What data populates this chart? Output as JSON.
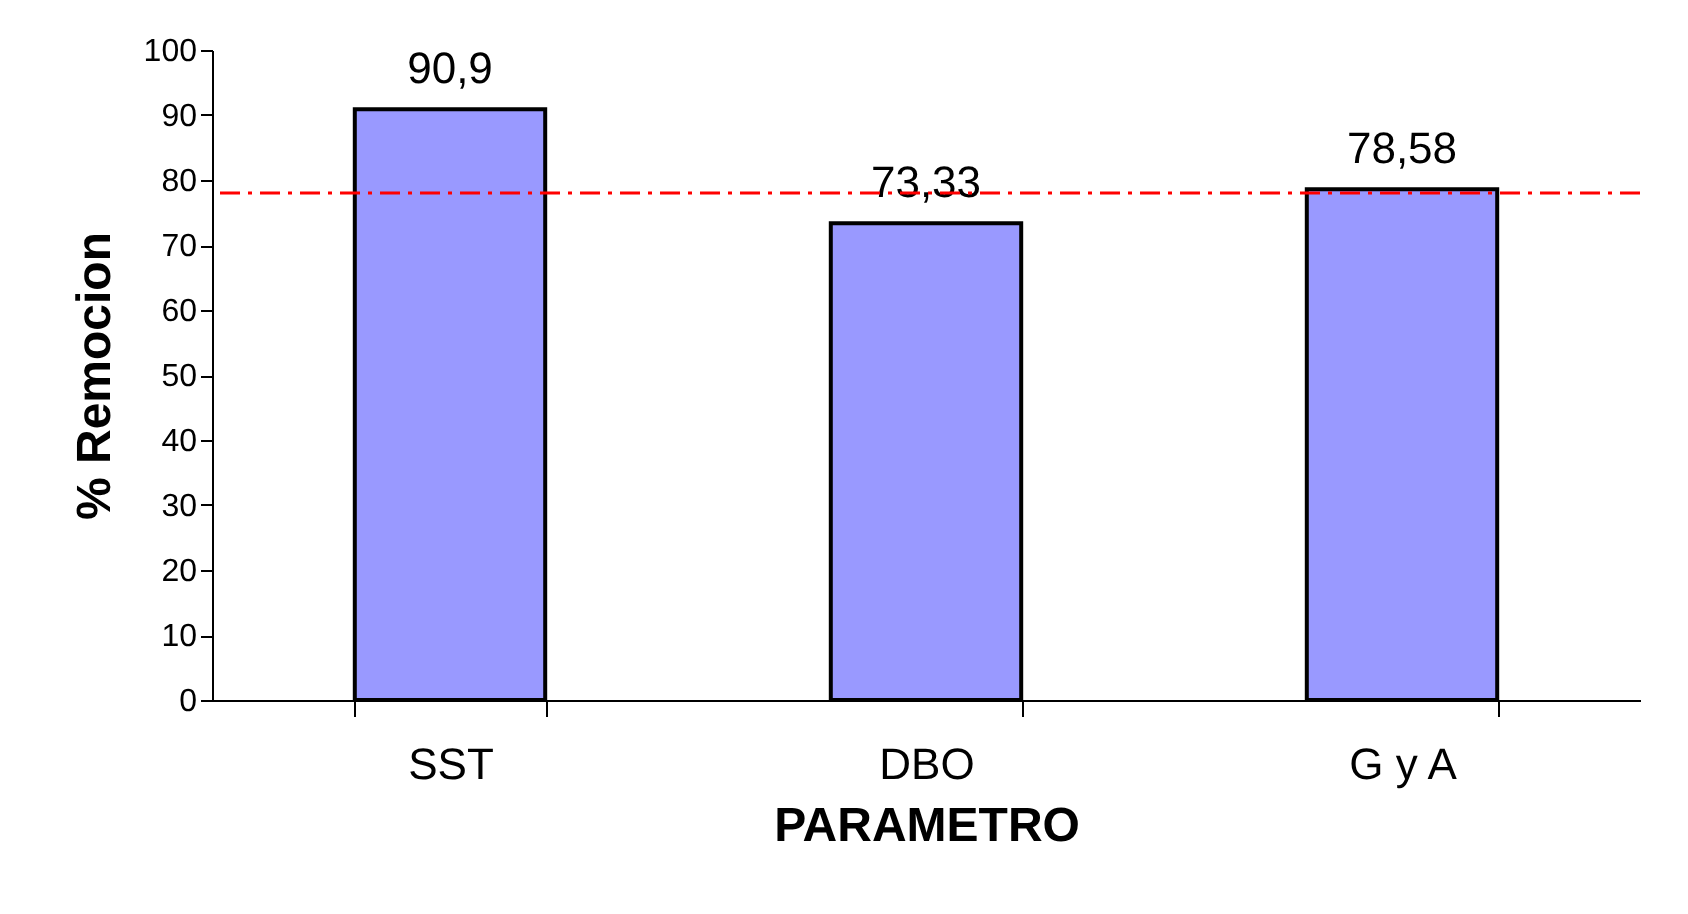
{
  "chart_data": {
    "type": "bar",
    "xlabel": "PARAMETRO",
    "ylabel": "% Remocion",
    "categories": [
      "SST",
      "DBO",
      "G y A"
    ],
    "values": [
      90.9,
      73.33,
      78.58
    ],
    "value_labels": [
      "90,9",
      "73,33",
      "78,58"
    ],
    "color": "#9999ff",
    "ylim": [
      0,
      100
    ],
    "yticks": [
      0,
      10,
      20,
      30,
      40,
      50,
      60,
      70,
      80,
      90,
      100
    ],
    "ref_lines": [
      {
        "axis": "y",
        "value": 78,
        "color": "#ff0000",
        "line_style": "dashdot"
      }
    ],
    "grid": false
  }
}
